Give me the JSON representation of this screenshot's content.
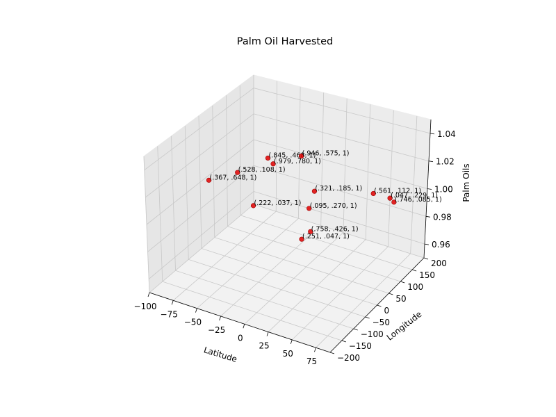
{
  "chart_data": {
    "type": "scatter",
    "projection": "3d",
    "title": "Palm Oil Harvested",
    "xlabel": "Latitude",
    "ylabel": "Longitude",
    "zlabel": "Palm Oils",
    "xlim": [
      -100,
      90
    ],
    "ylim": [
      -200,
      200
    ],
    "zlim": [
      0.95,
      1.05
    ],
    "xticks": [
      "−100",
      "−75",
      "−50",
      "−25",
      "0",
      "25",
      "50",
      "75"
    ],
    "yticks": [
      "−200",
      "−150",
      "−100",
      "−50",
      "0",
      "50",
      "100",
      "150",
      "200"
    ],
    "zticks": [
      "0.96",
      "0.98",
      "1.00",
      "1.02",
      "1.04"
    ],
    "grid": true,
    "marker_color": "#e00000",
    "points": [
      {
        "x": -95,
        "y": 15,
        "z": 1.0,
        "label": "(.367, .648, 1)"
      },
      {
        "x": -80,
        "y": 70,
        "z": 1.0,
        "label": "(.528, .108, 1)"
      },
      {
        "x": -70,
        "y": 150,
        "z": 1.0,
        "label": "(.845, .468, 1)"
      },
      {
        "x": -60,
        "y": 135,
        "z": 1.0,
        "label": "(.979, .780, 1)"
      },
      {
        "x": -45,
        "y": 190,
        "z": 1.0,
        "label": "(.946, .575, 1)"
      },
      {
        "x": -35,
        "y": -30,
        "z": 1.0,
        "label": "(.222, .037, 1)"
      },
      {
        "x": 0,
        "y": 80,
        "z": 1.0,
        "label": "(.321, .185, 1)"
      },
      {
        "x": 12,
        "y": 15,
        "z": 1.0,
        "label": "(.095, .270, 1)"
      },
      {
        "x": 50,
        "y": 130,
        "z": 1.0,
        "label": "(.561, .112, 1)"
      },
      {
        "x": 35,
        "y": -65,
        "z": 1.0,
        "label": "(.758, .426, 1)"
      },
      {
        "x": 35,
        "y": -100,
        "z": 1.0,
        "label": "(.251, .047, 1)"
      },
      {
        "x": 68,
        "y": 130,
        "z": 1.0,
        "label": "(.047, .229, 1)"
      },
      {
        "x": 75,
        "y": 120,
        "z": 1.0,
        "label": "(.746, .085, 1)"
      }
    ]
  }
}
